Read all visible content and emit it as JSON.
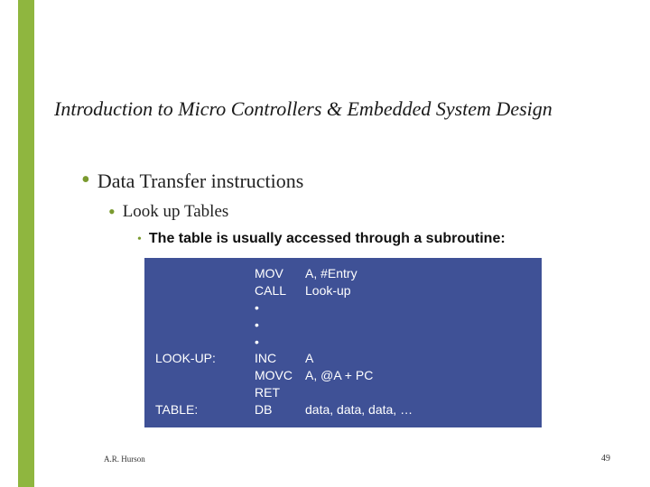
{
  "accent_color": "#8fb63f",
  "codebox_bg": "#3f5196",
  "codebox_fg": "#ffffff",
  "title": "Introduction to Micro Controllers & Embedded System Design",
  "b1": "Data Transfer instructions",
  "b2": "Look up Tables",
  "b3": "The table is usually accessed through a subroutine:",
  "code": {
    "r0": {
      "label": "",
      "op": "MOV",
      "arg": "A, #Entry"
    },
    "r1": {
      "label": "",
      "op": "CALL",
      "arg": "Look-up"
    },
    "dots": [
      "•",
      "•",
      "•"
    ],
    "r2": {
      "label": "LOOK-UP:",
      "op": "INC",
      "arg": "A"
    },
    "r3": {
      "label": "",
      "op": "MOVC",
      "arg": "A, @A + PC"
    },
    "r4": {
      "label": "",
      "op": "RET",
      "arg": ""
    },
    "r5": {
      "label": "TABLE:",
      "op": "DB",
      "arg": "data, data, data, …"
    }
  },
  "footer": {
    "author": "A.R. Hurson",
    "page": "49"
  }
}
